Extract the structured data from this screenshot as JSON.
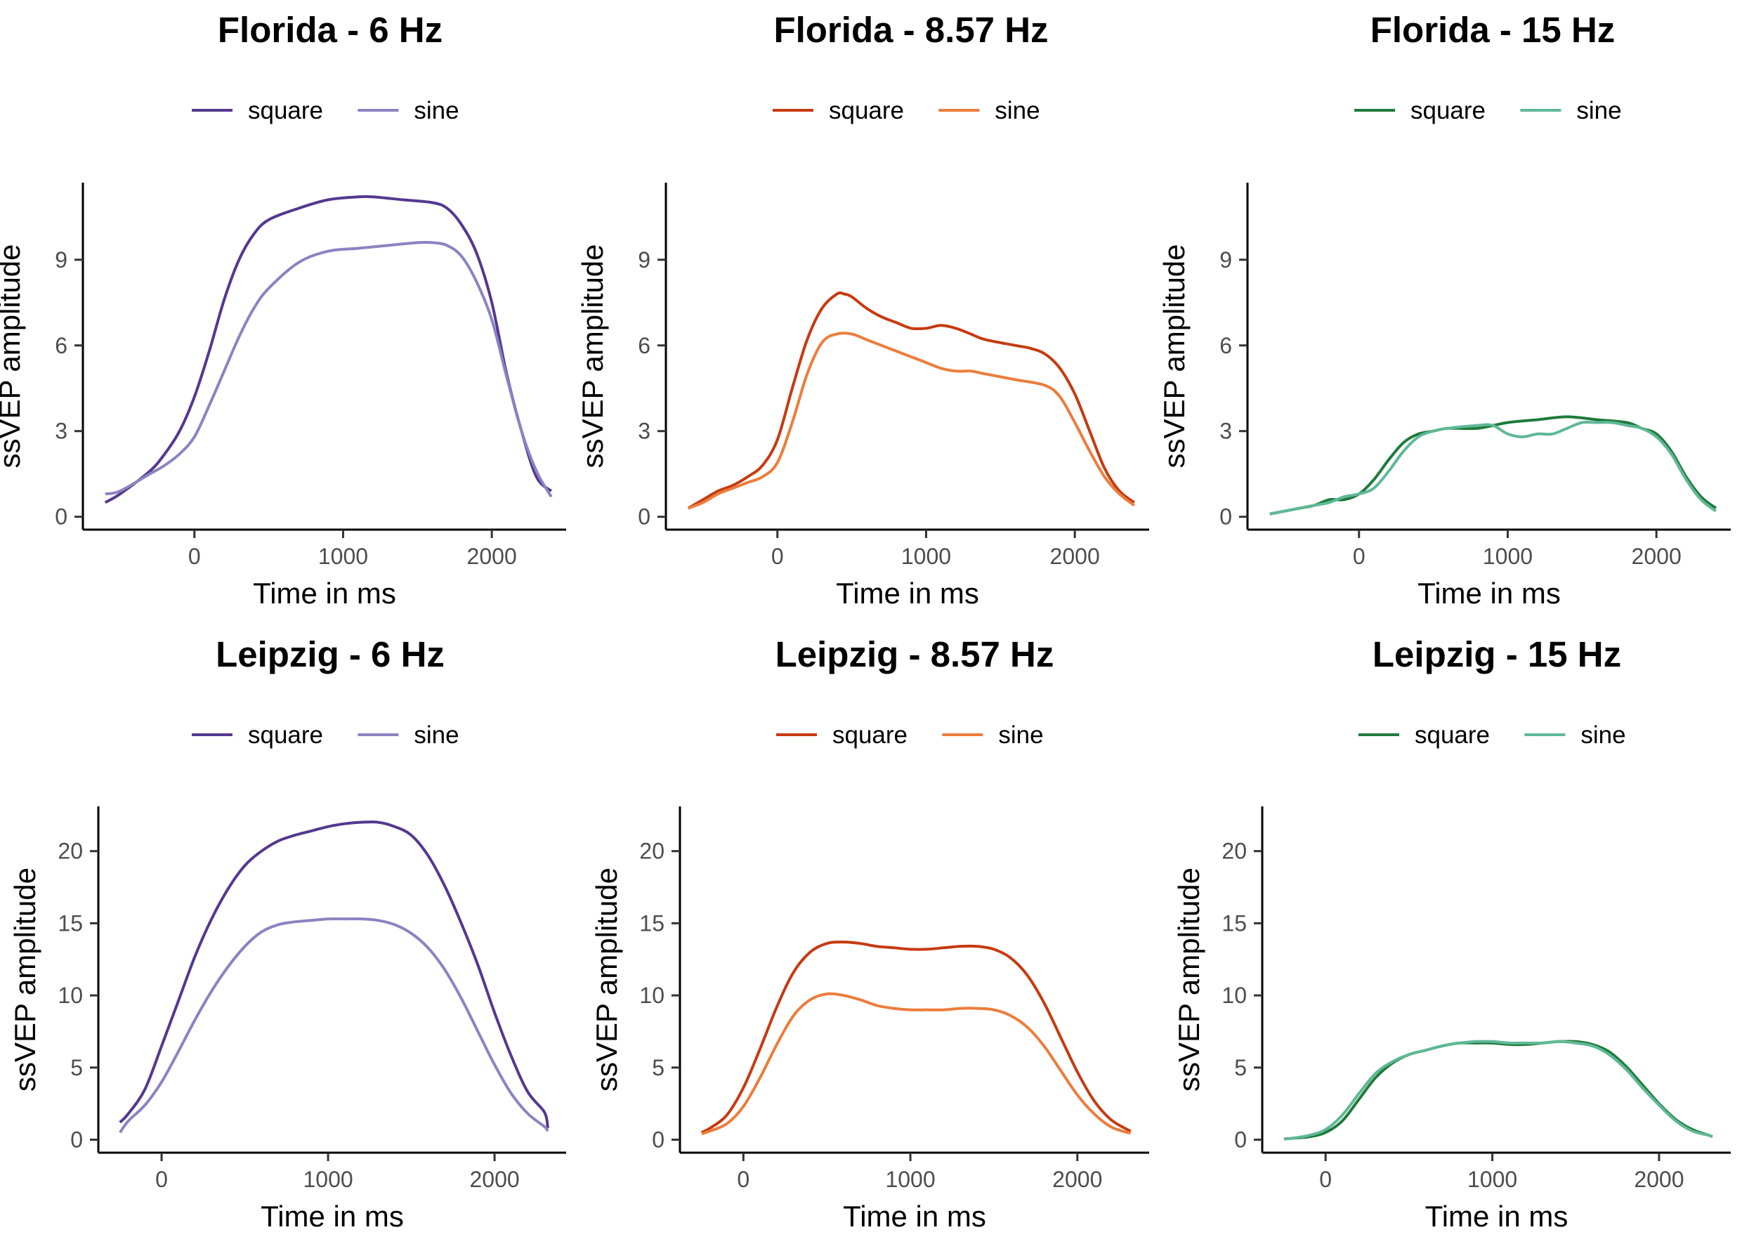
{
  "chart_data": [
    {
      "type": "line",
      "title": "Florida - 6 Hz",
      "xlabel": "Time in ms",
      "ylabel": "ssVEP amplitude",
      "xticks": [
        "0",
        "1000",
        "2000"
      ],
      "yticks": [
        "0",
        "3",
        "6",
        "9"
      ],
      "xlim": [
        -750,
        2500
      ],
      "ylim": [
        -0.45,
        11.7
      ],
      "grid": false,
      "legend": "top-center",
      "series": [
        {
          "name": "square",
          "color": "#54388f",
          "x": [
            -600,
            -500,
            -300,
            -200,
            -100,
            0,
            100,
            200,
            300,
            400,
            500,
            700,
            900,
            1100,
            1200,
            1400,
            1600,
            1700,
            1800,
            1900,
            2000,
            2100,
            2200,
            2300,
            2400
          ],
          "y": [
            0.5,
            0.8,
            1.6,
            2.2,
            3.0,
            4.2,
            5.8,
            7.6,
            9.0,
            9.9,
            10.4,
            10.8,
            11.1,
            11.2,
            11.2,
            11.1,
            11.0,
            10.8,
            10.2,
            9.2,
            7.5,
            5.0,
            3.0,
            1.4,
            0.9
          ]
        },
        {
          "name": "sine",
          "color": "#8b83c1",
          "x": [
            -600,
            -500,
            -300,
            -200,
            -100,
            0,
            100,
            200,
            300,
            400,
            500,
            700,
            900,
            1100,
            1300,
            1500,
            1600,
            1700,
            1800,
            1900,
            2000,
            2100,
            2200,
            2300,
            2400
          ],
          "y": [
            0.8,
            0.9,
            1.5,
            1.8,
            2.2,
            2.8,
            3.9,
            5.1,
            6.3,
            7.3,
            8.0,
            8.9,
            9.3,
            9.4,
            9.5,
            9.6,
            9.6,
            9.5,
            9.1,
            8.2,
            6.9,
            4.9,
            3.0,
            1.6,
            0.7
          ]
        }
      ]
    },
    {
      "type": "line",
      "title": "Florida - 8.57 Hz",
      "xlabel": "Time in ms",
      "ylabel": "ssVEP amplitude",
      "xticks": [
        "0",
        "1000",
        "2000"
      ],
      "yticks": [
        "0",
        "3",
        "6",
        "9"
      ],
      "xlim": [
        -750,
        2500
      ],
      "ylim": [
        -0.45,
        11.7
      ],
      "grid": false,
      "legend": "top-center",
      "series": [
        {
          "name": "square",
          "color": "#c63a10",
          "x": [
            -600,
            -500,
            -400,
            -300,
            -200,
            -100,
            0,
            100,
            200,
            300,
            400,
            450,
            500,
            600,
            700,
            800,
            900,
            1000,
            1100,
            1200,
            1300,
            1400,
            1600,
            1700,
            1800,
            1900,
            2000,
            2100,
            2200,
            2300,
            2400
          ],
          "y": [
            0.3,
            0.6,
            0.9,
            1.1,
            1.4,
            1.8,
            2.7,
            4.5,
            6.2,
            7.3,
            7.8,
            7.8,
            7.7,
            7.3,
            7.0,
            6.8,
            6.6,
            6.6,
            6.7,
            6.6,
            6.4,
            6.2,
            6.0,
            5.9,
            5.7,
            5.2,
            4.3,
            3.0,
            1.7,
            0.9,
            0.5
          ]
        },
        {
          "name": "sine",
          "color": "#ec7d3b",
          "x": [
            -600,
            -500,
            -400,
            -300,
            -200,
            -100,
            0,
            100,
            200,
            300,
            400,
            500,
            600,
            700,
            800,
            900,
            1000,
            1100,
            1200,
            1300,
            1400,
            1600,
            1800,
            1900,
            2000,
            2100,
            2200,
            2300,
            2400
          ],
          "y": [
            0.3,
            0.5,
            0.8,
            1.0,
            1.2,
            1.4,
            1.9,
            3.3,
            5.0,
            6.1,
            6.4,
            6.4,
            6.2,
            6.0,
            5.8,
            5.6,
            5.4,
            5.2,
            5.1,
            5.1,
            5.0,
            4.8,
            4.6,
            4.2,
            3.3,
            2.3,
            1.4,
            0.8,
            0.4
          ]
        }
      ]
    },
    {
      "type": "line",
      "title": "Florida - 15 Hz",
      "xlabel": "Time in ms",
      "ylabel": "ssVEP amplitude",
      "xticks": [
        "0",
        "1000",
        "2000"
      ],
      "yticks": [
        "0",
        "3",
        "6",
        "9"
      ],
      "xlim": [
        -750,
        2500
      ],
      "ylim": [
        -0.45,
        11.7
      ],
      "grid": false,
      "legend": "top-center",
      "series": [
        {
          "name": "square",
          "color": "#1f7a3b",
          "x": [
            -600,
            -500,
            -400,
            -300,
            -200,
            -100,
            0,
            100,
            200,
            300,
            400,
            500,
            600,
            800,
            1000,
            1200,
            1400,
            1600,
            1800,
            1900,
            2000,
            2100,
            2200,
            2300,
            2400
          ],
          "y": [
            0.1,
            0.2,
            0.3,
            0.4,
            0.6,
            0.6,
            0.8,
            1.3,
            2.0,
            2.6,
            2.9,
            3.0,
            3.1,
            3.1,
            3.3,
            3.4,
            3.5,
            3.4,
            3.3,
            3.1,
            2.9,
            2.3,
            1.4,
            0.7,
            0.3
          ]
        },
        {
          "name": "sine",
          "color": "#5fb896",
          "x": [
            -600,
            -500,
            -400,
            -300,
            -200,
            -100,
            0,
            100,
            200,
            300,
            400,
            500,
            600,
            800,
            900,
            1000,
            1100,
            1200,
            1300,
            1400,
            1500,
            1600,
            1700,
            1800,
            1900,
            2000,
            2100,
            2200,
            2300,
            2400
          ],
          "y": [
            0.1,
            0.2,
            0.3,
            0.4,
            0.5,
            0.7,
            0.8,
            1.0,
            1.6,
            2.3,
            2.8,
            3.0,
            3.1,
            3.2,
            3.2,
            2.9,
            2.8,
            2.9,
            2.9,
            3.1,
            3.3,
            3.3,
            3.3,
            3.2,
            3.1,
            2.8,
            2.2,
            1.3,
            0.6,
            0.2
          ]
        }
      ]
    },
    {
      "type": "line",
      "title": "Leipzig - 6 Hz",
      "xlabel": "Time in ms",
      "ylabel": "ssVEP amplitude",
      "xticks": [
        "0",
        "1000",
        "2000"
      ],
      "yticks": [
        "0",
        "5",
        "10",
        "15",
        "20"
      ],
      "xlim": [
        -380,
        2430
      ],
      "ylim": [
        -0.9,
        23.1
      ],
      "grid": false,
      "legend": "top-center",
      "series": [
        {
          "name": "square",
          "color": "#54388f",
          "x": [
            -250,
            -200,
            -100,
            0,
            100,
            200,
            300,
            400,
            500,
            600,
            700,
            800,
            900,
            1000,
            1100,
            1200,
            1300,
            1400,
            1500,
            1600,
            1700,
            1800,
            1900,
            2000,
            2100,
            2200,
            2300,
            2320
          ],
          "y": [
            1.2,
            1.8,
            3.5,
            6.5,
            9.6,
            12.7,
            15.3,
            17.4,
            19.0,
            20.0,
            20.7,
            21.1,
            21.4,
            21.7,
            21.9,
            22.0,
            22.0,
            21.7,
            21.1,
            19.7,
            17.6,
            15.0,
            12.1,
            8.8,
            5.8,
            3.3,
            1.9,
            0.8
          ]
        },
        {
          "name": "sine",
          "color": "#8b83c1",
          "x": [
            -250,
            -200,
            -100,
            0,
            100,
            200,
            300,
            400,
            500,
            600,
            700,
            800,
            900,
            1000,
            1100,
            1200,
            1300,
            1400,
            1500,
            1600,
            1700,
            1800,
            1900,
            2000,
            2100,
            2200,
            2300,
            2320
          ],
          "y": [
            0.5,
            1.3,
            2.4,
            4.0,
            6.1,
            8.3,
            10.3,
            12.0,
            13.4,
            14.4,
            14.9,
            15.1,
            15.2,
            15.3,
            15.3,
            15.3,
            15.2,
            14.9,
            14.3,
            13.3,
            11.8,
            9.8,
            7.5,
            5.2,
            3.2,
            1.8,
            0.9,
            0.6
          ]
        }
      ]
    },
    {
      "type": "line",
      "title": "Leipzig - 8.57 Hz",
      "xlabel": "Time in ms",
      "ylabel": "ssVEP amplitude",
      "xticks": [
        "0",
        "1000",
        "2000"
      ],
      "yticks": [
        "0",
        "5",
        "10",
        "15",
        "20"
      ],
      "xlim": [
        -380,
        2430
      ],
      "ylim": [
        -0.9,
        23.1
      ],
      "grid": false,
      "legend": "top-center",
      "series": [
        {
          "name": "square",
          "color": "#c63a10",
          "x": [
            -250,
            -200,
            -100,
            0,
            100,
            200,
            300,
            400,
            500,
            600,
            700,
            800,
            900,
            1000,
            1100,
            1200,
            1300,
            1400,
            1500,
            1600,
            1700,
            1800,
            1900,
            2000,
            2100,
            2200,
            2300,
            2320
          ],
          "y": [
            0.5,
            0.8,
            1.7,
            3.6,
            6.3,
            9.2,
            11.6,
            13.0,
            13.6,
            13.7,
            13.6,
            13.4,
            13.3,
            13.2,
            13.2,
            13.3,
            13.4,
            13.4,
            13.2,
            12.6,
            11.4,
            9.5,
            7.1,
            4.7,
            2.7,
            1.4,
            0.7,
            0.6
          ]
        },
        {
          "name": "sine",
          "color": "#ec7d3b",
          "x": [
            -250,
            -200,
            -100,
            0,
            100,
            200,
            300,
            400,
            500,
            600,
            700,
            800,
            900,
            1000,
            1100,
            1200,
            1300,
            1400,
            1500,
            1600,
            1700,
            1800,
            1900,
            2000,
            2100,
            2200,
            2300,
            2320
          ],
          "y": [
            0.4,
            0.6,
            1.1,
            2.3,
            4.3,
            6.6,
            8.6,
            9.7,
            10.1,
            10.0,
            9.7,
            9.3,
            9.1,
            9.0,
            9.0,
            9.0,
            9.1,
            9.1,
            9.0,
            8.6,
            7.8,
            6.5,
            4.8,
            3.1,
            1.8,
            0.9,
            0.5,
            0.5
          ]
        }
      ]
    },
    {
      "type": "line",
      "title": "Leipzig - 15 Hz",
      "xlabel": "Time in ms",
      "ylabel": "ssVEP amplitude",
      "xticks": [
        "0",
        "1000",
        "2000"
      ],
      "yticks": [
        "0",
        "5",
        "10",
        "15",
        "20"
      ],
      "xlim": [
        -380,
        2430
      ],
      "ylim": [
        -0.9,
        23.1
      ],
      "grid": false,
      "legend": "top-center",
      "series": [
        {
          "name": "square",
          "color": "#1f7a3b",
          "x": [
            -250,
            -200,
            -100,
            0,
            100,
            200,
            300,
            400,
            500,
            600,
            700,
            800,
            900,
            1000,
            1100,
            1200,
            1300,
            1400,
            1500,
            1600,
            1700,
            1800,
            1900,
            2000,
            2100,
            2200,
            2300,
            2320
          ],
          "y": [
            0.05,
            0.1,
            0.2,
            0.5,
            1.3,
            2.8,
            4.3,
            5.3,
            5.9,
            6.2,
            6.5,
            6.7,
            6.7,
            6.7,
            6.6,
            6.6,
            6.7,
            6.8,
            6.8,
            6.6,
            6.1,
            5.1,
            3.8,
            2.5,
            1.4,
            0.7,
            0.3,
            0.2
          ]
        },
        {
          "name": "sine",
          "color": "#5fb896",
          "x": [
            -250,
            -200,
            -100,
            0,
            100,
            200,
            300,
            400,
            500,
            600,
            700,
            800,
            900,
            1000,
            1100,
            1200,
            1300,
            1400,
            1500,
            1600,
            1700,
            1800,
            1900,
            2000,
            2100,
            2200,
            2300,
            2320
          ],
          "y": [
            0.05,
            0.1,
            0.3,
            0.7,
            1.7,
            3.2,
            4.6,
            5.4,
            5.9,
            6.2,
            6.5,
            6.7,
            6.8,
            6.8,
            6.7,
            6.7,
            6.7,
            6.8,
            6.7,
            6.5,
            5.9,
            4.9,
            3.6,
            2.4,
            1.3,
            0.6,
            0.3,
            0.2
          ]
        }
      ]
    }
  ]
}
